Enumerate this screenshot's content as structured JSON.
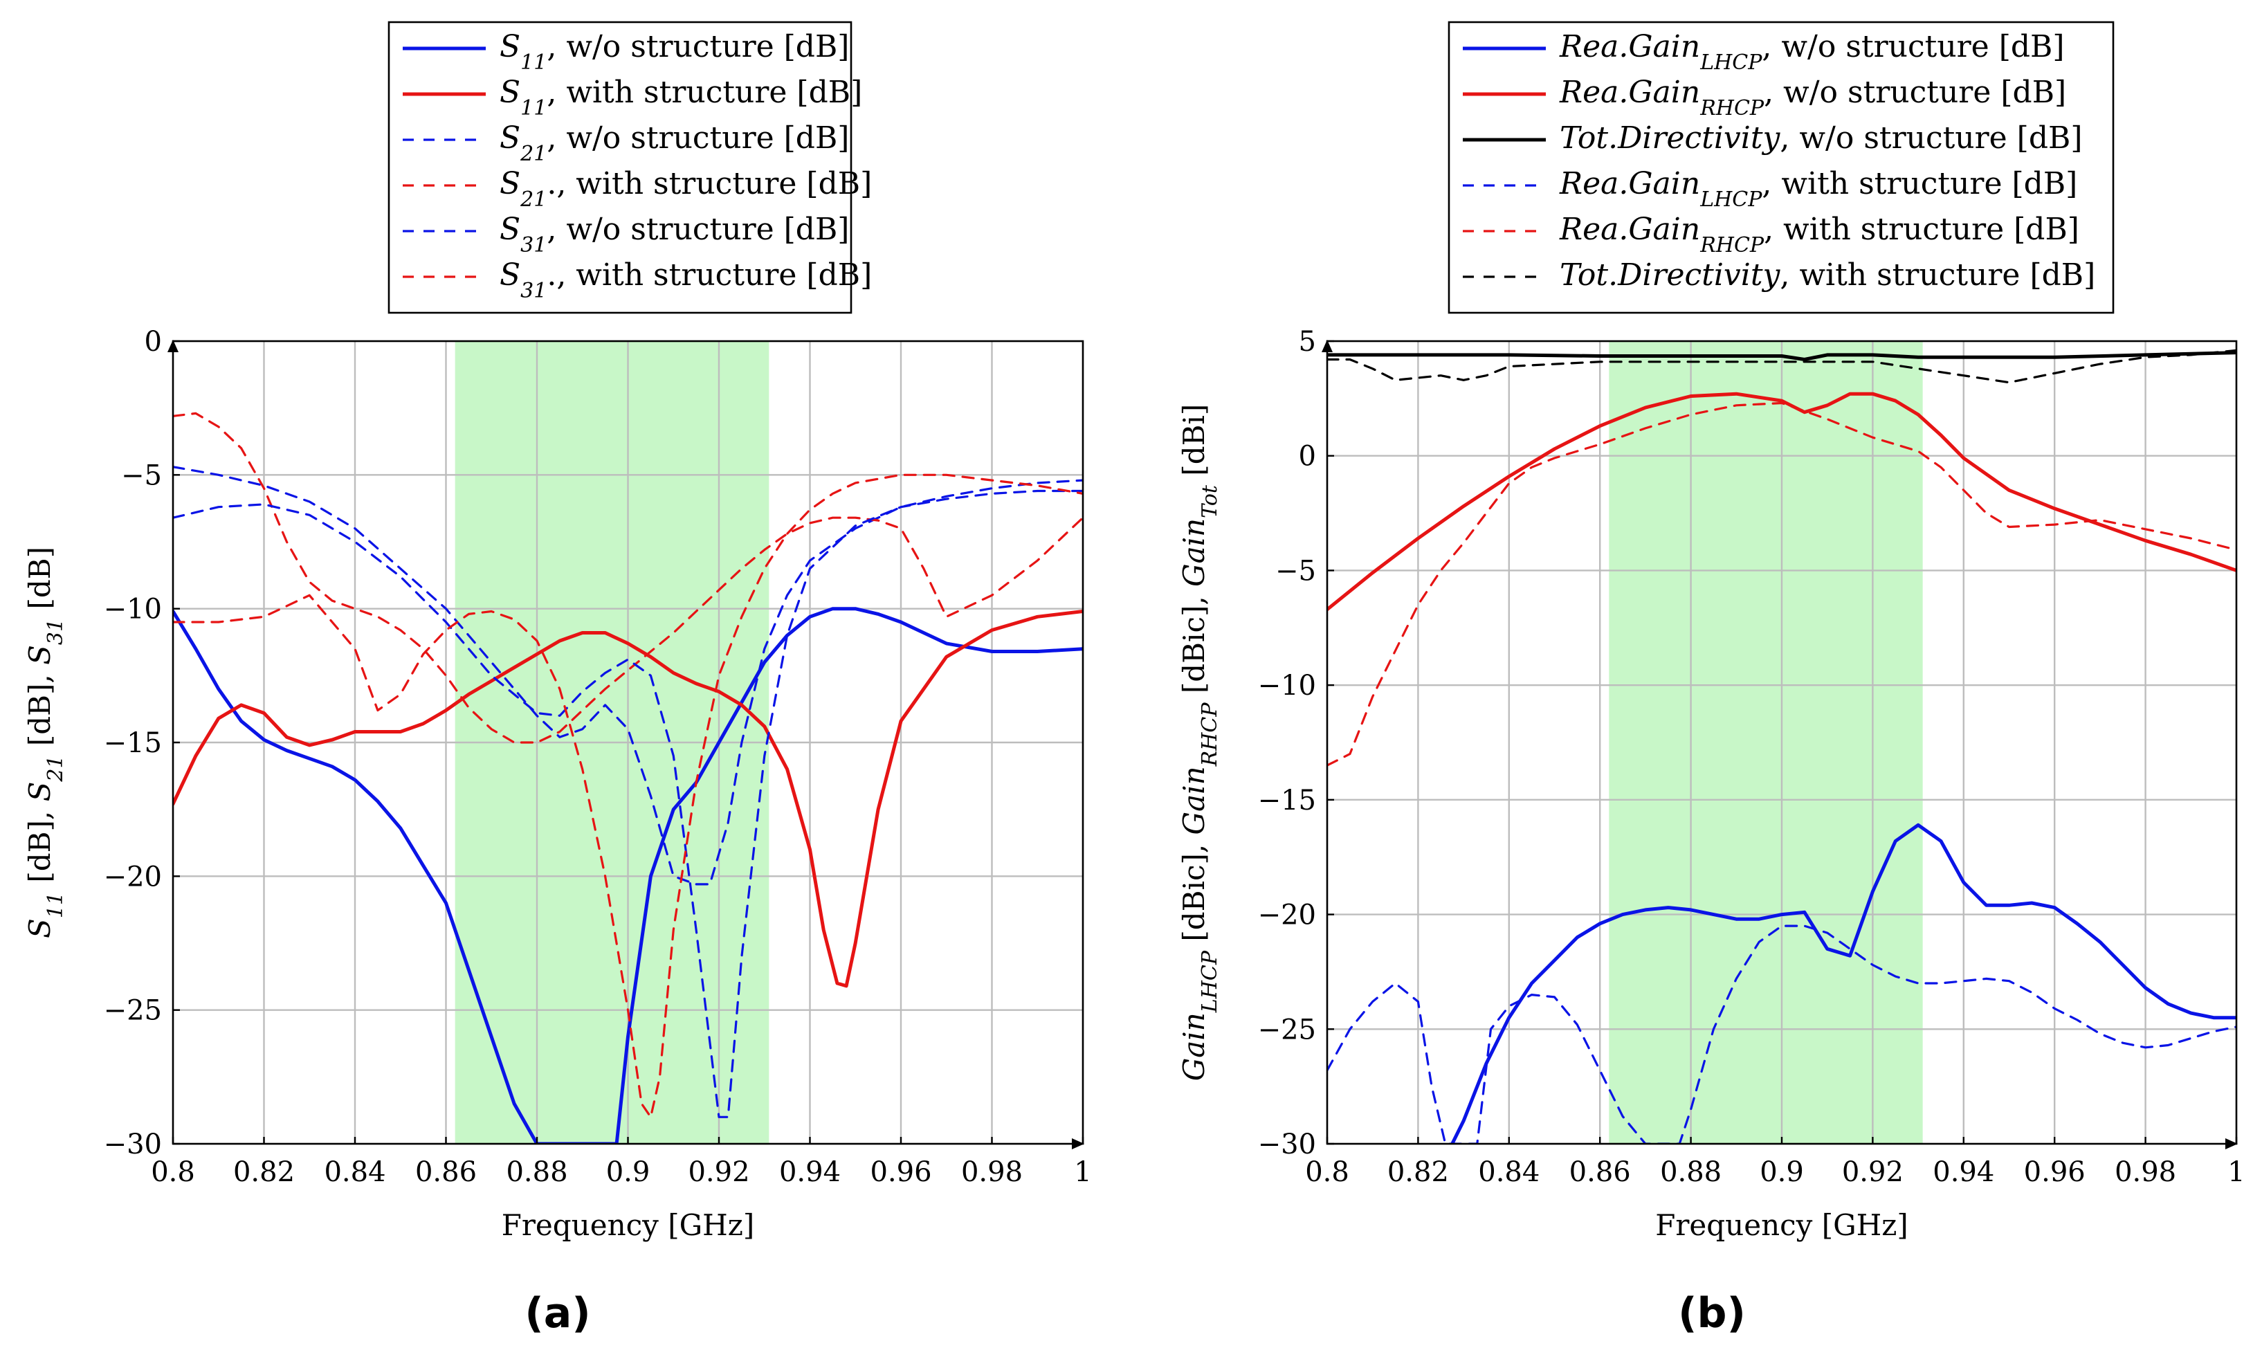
{
  "chart_data": [
    {
      "type": "line",
      "panel_label": "(a)",
      "xlabel": "Frequency [GHz]",
      "ylabel": "S11 [dB], S21 [dB], S31 [dB]",
      "xlim": [
        0.8,
        1.0
      ],
      "ylim": [
        -30,
        0
      ],
      "xticks": [
        0.8,
        0.82,
        0.84,
        0.86,
        0.88,
        0.9,
        0.92,
        0.94,
        0.96,
        0.98,
        1.0
      ],
      "xtick_labels": [
        "0.8",
        "0.82",
        "0.84",
        "0.86",
        "0.88",
        "0.9",
        "0.92",
        "0.94",
        "0.96",
        "0.98",
        "1"
      ],
      "yticks": [
        -30,
        -25,
        -20,
        -15,
        -10,
        -5,
        0
      ],
      "ytick_labels": [
        "−30",
        "−25",
        "−20",
        "−15",
        "−10",
        "−5",
        "0"
      ],
      "grid": true,
      "shaded_band": {
        "from": 0.862,
        "to": 0.931,
        "color": "#c8f7c8"
      },
      "legend_position": "top-center-outside",
      "series": [
        {
          "name": "S11, w/o structure [dB]",
          "sym": "S",
          "sub": "11",
          "text": ", w/o structure [dB]",
          "color": "#0a14e6",
          "dash": "solid",
          "x": [
            0.8,
            0.805,
            0.81,
            0.815,
            0.82,
            0.825,
            0.83,
            0.835,
            0.84,
            0.845,
            0.85,
            0.855,
            0.86,
            0.865,
            0.87,
            0.875,
            0.88,
            0.8825,
            0.8975,
            0.9,
            0.905,
            0.91,
            0.915,
            0.92,
            0.925,
            0.93,
            0.935,
            0.94,
            0.945,
            0.95,
            0.955,
            0.96,
            0.965,
            0.97,
            0.98,
            0.99,
            1.0
          ],
          "y": [
            -10.1,
            -11.5,
            -13.0,
            -14.2,
            -14.9,
            -15.3,
            -15.6,
            -15.9,
            -16.4,
            -17.2,
            -18.2,
            -19.6,
            -21.0,
            -23.5,
            -26.0,
            -28.5,
            -30,
            -30,
            -30,
            -26.0,
            -20.0,
            -17.5,
            -16.5,
            -15.0,
            -13.5,
            -12.0,
            -11.0,
            -10.3,
            -10.0,
            -10.0,
            -10.2,
            -10.5,
            -10.9,
            -11.3,
            -11.6,
            -11.6,
            -11.5
          ]
        },
        {
          "name": "S11, with structure [dB]",
          "sym": "S",
          "sub": "11",
          "text": ", with structure [dB]",
          "color": "#e61414",
          "dash": "solid",
          "x": [
            0.8,
            0.805,
            0.81,
            0.815,
            0.82,
            0.825,
            0.83,
            0.835,
            0.84,
            0.845,
            0.85,
            0.855,
            0.86,
            0.865,
            0.87,
            0.875,
            0.88,
            0.885,
            0.89,
            0.895,
            0.9,
            0.905,
            0.91,
            0.915,
            0.92,
            0.925,
            0.93,
            0.935,
            0.94,
            0.943,
            0.946,
            0.948,
            0.95,
            0.955,
            0.96,
            0.97,
            0.98,
            0.99,
            1.0
          ],
          "y": [
            -17.3,
            -15.5,
            -14.1,
            -13.6,
            -13.9,
            -14.8,
            -15.1,
            -14.9,
            -14.6,
            -14.6,
            -14.6,
            -14.3,
            -13.8,
            -13.2,
            -12.7,
            -12.2,
            -11.7,
            -11.2,
            -10.9,
            -10.9,
            -11.3,
            -11.8,
            -12.4,
            -12.8,
            -13.1,
            -13.6,
            -14.4,
            -16.0,
            -19.0,
            -22.0,
            -24.0,
            -24.1,
            -22.5,
            -17.5,
            -14.2,
            -11.8,
            -10.8,
            -10.3,
            -10.1
          ]
        },
        {
          "name": "S21, w/o structure [dB]",
          "sym": "S",
          "sub": "21",
          "text": ", w/o structure [dB]",
          "color": "#0a14e6",
          "dash": "dashed",
          "x": [
            0.8,
            0.81,
            0.82,
            0.83,
            0.84,
            0.85,
            0.86,
            0.87,
            0.88,
            0.885,
            0.89,
            0.895,
            0.9,
            0.905,
            0.91,
            0.915,
            0.918,
            0.922,
            0.925,
            0.93,
            0.935,
            0.94,
            0.95,
            0.96,
            0.97,
            0.98,
            0.99,
            1.0
          ],
          "y": [
            -4.7,
            -5.0,
            -5.4,
            -6.0,
            -7.0,
            -8.5,
            -10.0,
            -12.0,
            -14.0,
            -14.8,
            -14.5,
            -13.6,
            -14.5,
            -17.0,
            -20.0,
            -20.3,
            -20.3,
            -18.0,
            -15.0,
            -11.5,
            -9.5,
            -8.2,
            -7.0,
            -6.2,
            -5.8,
            -5.5,
            -5.3,
            -5.2
          ]
        },
        {
          "name": "S21., with structure [dB]",
          "sym": "S",
          "sub": "21",
          "text": "., with structure [dB]",
          "color": "#e61414",
          "dash": "dashed",
          "x": [
            0.8,
            0.805,
            0.81,
            0.815,
            0.82,
            0.825,
            0.83,
            0.835,
            0.84,
            0.845,
            0.85,
            0.855,
            0.86,
            0.865,
            0.87,
            0.875,
            0.88,
            0.885,
            0.89,
            0.895,
            0.9,
            0.905,
            0.91,
            0.915,
            0.92,
            0.925,
            0.93,
            0.935,
            0.94,
            0.945,
            0.95,
            0.955,
            0.96,
            0.965,
            0.97,
            0.98,
            0.99,
            1.0
          ],
          "y": [
            -2.8,
            -2.7,
            -3.2,
            -4.0,
            -5.5,
            -7.5,
            -9.0,
            -9.7,
            -10.0,
            -10.3,
            -10.8,
            -11.5,
            -12.5,
            -13.7,
            -14.5,
            -15.0,
            -15.0,
            -14.6,
            -13.8,
            -13.0,
            -12.3,
            -11.6,
            -10.9,
            -10.1,
            -9.3,
            -8.5,
            -7.8,
            -7.2,
            -6.8,
            -6.6,
            -6.6,
            -6.7,
            -7.0,
            -8.5,
            -10.3,
            -9.5,
            -8.2,
            -6.6
          ]
        },
        {
          "name": "S31, w/o structure [dB]",
          "sym": "S",
          "sub": "31",
          "text": ", w/o structure [dB]",
          "color": "#0a14e6",
          "dash": "dashed",
          "x": [
            0.8,
            0.81,
            0.82,
            0.83,
            0.84,
            0.85,
            0.86,
            0.87,
            0.88,
            0.885,
            0.89,
            0.895,
            0.9,
            0.905,
            0.91,
            0.915,
            0.92,
            0.922,
            0.925,
            0.93,
            0.935,
            0.94,
            0.95,
            0.96,
            0.97,
            0.98,
            0.99,
            1.0
          ],
          "y": [
            -6.6,
            -6.2,
            -6.1,
            -6.5,
            -7.5,
            -8.8,
            -10.5,
            -12.5,
            -13.9,
            -14.0,
            -13.1,
            -12.4,
            -11.9,
            -12.5,
            -15.5,
            -22.0,
            -29.0,
            -29.0,
            -23.0,
            -15.5,
            -11.0,
            -8.5,
            -6.9,
            -6.2,
            -5.9,
            -5.7,
            -5.6,
            -5.6
          ]
        },
        {
          "name": "S31., with structure [dB]",
          "sym": "S",
          "sub": "31",
          "text": "., with structure [dB]",
          "color": "#e61414",
          "dash": "dashed",
          "x": [
            0.8,
            0.81,
            0.82,
            0.83,
            0.84,
            0.845,
            0.85,
            0.855,
            0.86,
            0.865,
            0.87,
            0.875,
            0.88,
            0.885,
            0.89,
            0.895,
            0.9,
            0.903,
            0.905,
            0.907,
            0.91,
            0.915,
            0.92,
            0.925,
            0.93,
            0.935,
            0.94,
            0.945,
            0.95,
            0.96,
            0.97,
            0.98,
            0.99,
            1.0
          ],
          "y": [
            -10.5,
            -10.5,
            -10.3,
            -9.5,
            -11.5,
            -13.8,
            -13.2,
            -11.7,
            -10.8,
            -10.2,
            -10.1,
            -10.4,
            -11.2,
            -13.0,
            -16.0,
            -20.0,
            -25.0,
            -28.5,
            -29.0,
            -27.5,
            -22.0,
            -16.5,
            -12.5,
            -10.3,
            -8.5,
            -7.2,
            -6.3,
            -5.7,
            -5.3,
            -5.0,
            -5.0,
            -5.2,
            -5.4,
            -5.7
          ]
        }
      ]
    },
    {
      "type": "line",
      "panel_label": "(b)",
      "xlabel": "Frequency [GHz]",
      "ylabel": "GainLHCP [dBic], GainRHCP [dBic], GainTot [dBi]",
      "xlim": [
        0.8,
        1.0
      ],
      "ylim": [
        -30,
        5
      ],
      "xticks": [
        0.8,
        0.82,
        0.84,
        0.86,
        0.88,
        0.9,
        0.92,
        0.94,
        0.96,
        0.98,
        1.0
      ],
      "xtick_labels": [
        "0.8",
        "0.82",
        "0.84",
        "0.86",
        "0.88",
        "0.9",
        "0.92",
        "0.94",
        "0.96",
        "0.98",
        "1"
      ],
      "yticks": [
        -30,
        -25,
        -20,
        -15,
        -10,
        -5,
        0,
        5
      ],
      "ytick_labels": [
        "−30",
        "−25",
        "−20",
        "−15",
        "−10",
        "−5",
        "0",
        "5"
      ],
      "grid": true,
      "shaded_band": {
        "from": 0.862,
        "to": 0.931,
        "color": "#c8f7c8"
      },
      "legend_position": "top-center-outside",
      "series": [
        {
          "name": "Rea.Gain LHCP, w/o structure [dB]",
          "sym": "Rea.Gain",
          "sub": "LHCP",
          "text": ", w/o structure [dB]",
          "color": "#0a14e6",
          "dash": "solid",
          "x": [
            0.8275,
            0.83,
            0.835,
            0.84,
            0.845,
            0.85,
            0.855,
            0.86,
            0.865,
            0.87,
            0.875,
            0.88,
            0.885,
            0.89,
            0.895,
            0.9,
            0.905,
            0.91,
            0.915,
            0.92,
            0.925,
            0.93,
            0.935,
            0.94,
            0.945,
            0.95,
            0.955,
            0.96,
            0.965,
            0.97,
            0.975,
            0.98,
            0.985,
            0.99,
            0.995,
            1.0
          ],
          "y": [
            -30,
            -29.0,
            -26.5,
            -24.5,
            -23.0,
            -22.0,
            -21.0,
            -20.4,
            -20.0,
            -19.8,
            -19.7,
            -19.8,
            -20.0,
            -20.2,
            -20.2,
            -20.0,
            -19.9,
            -21.5,
            -21.8,
            -19.0,
            -16.8,
            -16.1,
            -16.8,
            -18.6,
            -19.6,
            -19.6,
            -19.5,
            -19.7,
            -20.4,
            -21.2,
            -22.2,
            -23.2,
            -23.9,
            -24.3,
            -24.5,
            -24.5
          ]
        },
        {
          "name": "Rea.Gain RHCP, w/o structure [dB]",
          "sym": "Rea.Gain",
          "sub": "RHCP",
          "text": ", w/o structure [dB]",
          "color": "#e61414",
          "dash": "solid",
          "x": [
            0.8,
            0.81,
            0.82,
            0.83,
            0.84,
            0.85,
            0.86,
            0.87,
            0.88,
            0.89,
            0.9,
            0.905,
            0.91,
            0.915,
            0.92,
            0.925,
            0.93,
            0.935,
            0.94,
            0.95,
            0.96,
            0.97,
            0.98,
            0.99,
            1.0
          ],
          "y": [
            -6.7,
            -5.1,
            -3.6,
            -2.2,
            -0.9,
            0.3,
            1.3,
            2.1,
            2.6,
            2.7,
            2.4,
            1.9,
            2.2,
            2.7,
            2.7,
            2.4,
            1.8,
            0.9,
            -0.1,
            -1.5,
            -2.3,
            -3.0,
            -3.7,
            -4.3,
            -5.0
          ]
        },
        {
          "name": "Tot.Directivity, w/o structure [dB]",
          "sym": "Tot.Directivity",
          "sub": "",
          "text": ", w/o structure [dB]",
          "color": "#000000",
          "dash": "solid",
          "x": [
            0.8,
            0.82,
            0.84,
            0.86,
            0.88,
            0.9,
            0.905,
            0.91,
            0.92,
            0.93,
            0.94,
            0.96,
            0.98,
            1.0
          ],
          "y": [
            4.4,
            4.4,
            4.4,
            4.35,
            4.35,
            4.35,
            4.2,
            4.4,
            4.4,
            4.3,
            4.3,
            4.3,
            4.4,
            4.5
          ]
        },
        {
          "name": "Rea.Gain LHCP, with structure [dB]",
          "sym": "Rea.Gain",
          "sub": "LHCP",
          "text": ", with structure [dB]",
          "color": "#0a14e6",
          "dash": "dashed",
          "x": [
            0.8,
            0.805,
            0.81,
            0.815,
            0.82,
            0.823,
            0.826,
            0.833,
            0.836,
            0.84,
            0.845,
            0.85,
            0.855,
            0.86,
            0.865,
            0.87,
            0.8775,
            0.88,
            0.885,
            0.89,
            0.895,
            0.9,
            0.905,
            0.91,
            0.915,
            0.92,
            0.925,
            0.93,
            0.935,
            0.94,
            0.945,
            0.95,
            0.955,
            0.96,
            0.965,
            0.97,
            0.975,
            0.98,
            0.985,
            0.99,
            0.995,
            1.0
          ],
          "y": [
            -26.8,
            -25.0,
            -23.8,
            -23.0,
            -23.8,
            -27.5,
            -30,
            -30,
            -25.0,
            -24.0,
            -23.5,
            -23.6,
            -24.8,
            -26.8,
            -28.8,
            -30,
            -30,
            -28.5,
            -25.0,
            -22.8,
            -21.2,
            -20.5,
            -20.5,
            -20.8,
            -21.5,
            -22.2,
            -22.7,
            -23.0,
            -23.0,
            -22.9,
            -22.8,
            -22.9,
            -23.4,
            -24.1,
            -24.6,
            -25.2,
            -25.6,
            -25.8,
            -25.7,
            -25.4,
            -25.1,
            -24.9
          ]
        },
        {
          "name": "Rea.Gain RHCP, with structure [dB]",
          "sym": "Rea.Gain",
          "sub": "RHCP",
          "text": ", with structure [dB]",
          "color": "#e61414",
          "dash": "dashed",
          "x": [
            0.8,
            0.805,
            0.81,
            0.815,
            0.82,
            0.825,
            0.83,
            0.835,
            0.84,
            0.845,
            0.85,
            0.86,
            0.87,
            0.88,
            0.89,
            0.9,
            0.91,
            0.92,
            0.93,
            0.935,
            0.94,
            0.945,
            0.95,
            0.96,
            0.97,
            0.98,
            0.99,
            1.0
          ],
          "y": [
            -13.5,
            -13.0,
            -10.5,
            -8.5,
            -6.5,
            -5.0,
            -3.8,
            -2.5,
            -1.2,
            -0.5,
            -0.1,
            0.5,
            1.2,
            1.8,
            2.2,
            2.3,
            1.6,
            0.8,
            0.2,
            -0.5,
            -1.5,
            -2.5,
            -3.1,
            -3.0,
            -2.8,
            -3.2,
            -3.6,
            -4.1
          ]
        },
        {
          "name": "Tot.Directivity, with structure [dB]",
          "sym": "Tot.Directivity",
          "sub": "",
          "text": ", with structure [dB]",
          "color": "#000000",
          "dash": "dashed",
          "x": [
            0.8,
            0.805,
            0.81,
            0.815,
            0.82,
            0.825,
            0.83,
            0.835,
            0.84,
            0.86,
            0.88,
            0.9,
            0.92,
            0.93,
            0.94,
            0.95,
            0.96,
            0.97,
            0.98,
            0.99,
            1.0
          ],
          "y": [
            4.2,
            4.2,
            3.8,
            3.3,
            3.4,
            3.5,
            3.3,
            3.5,
            3.9,
            4.1,
            4.1,
            4.1,
            4.1,
            3.8,
            3.5,
            3.2,
            3.6,
            4.0,
            4.3,
            4.4,
            4.6
          ]
        }
      ]
    }
  ]
}
